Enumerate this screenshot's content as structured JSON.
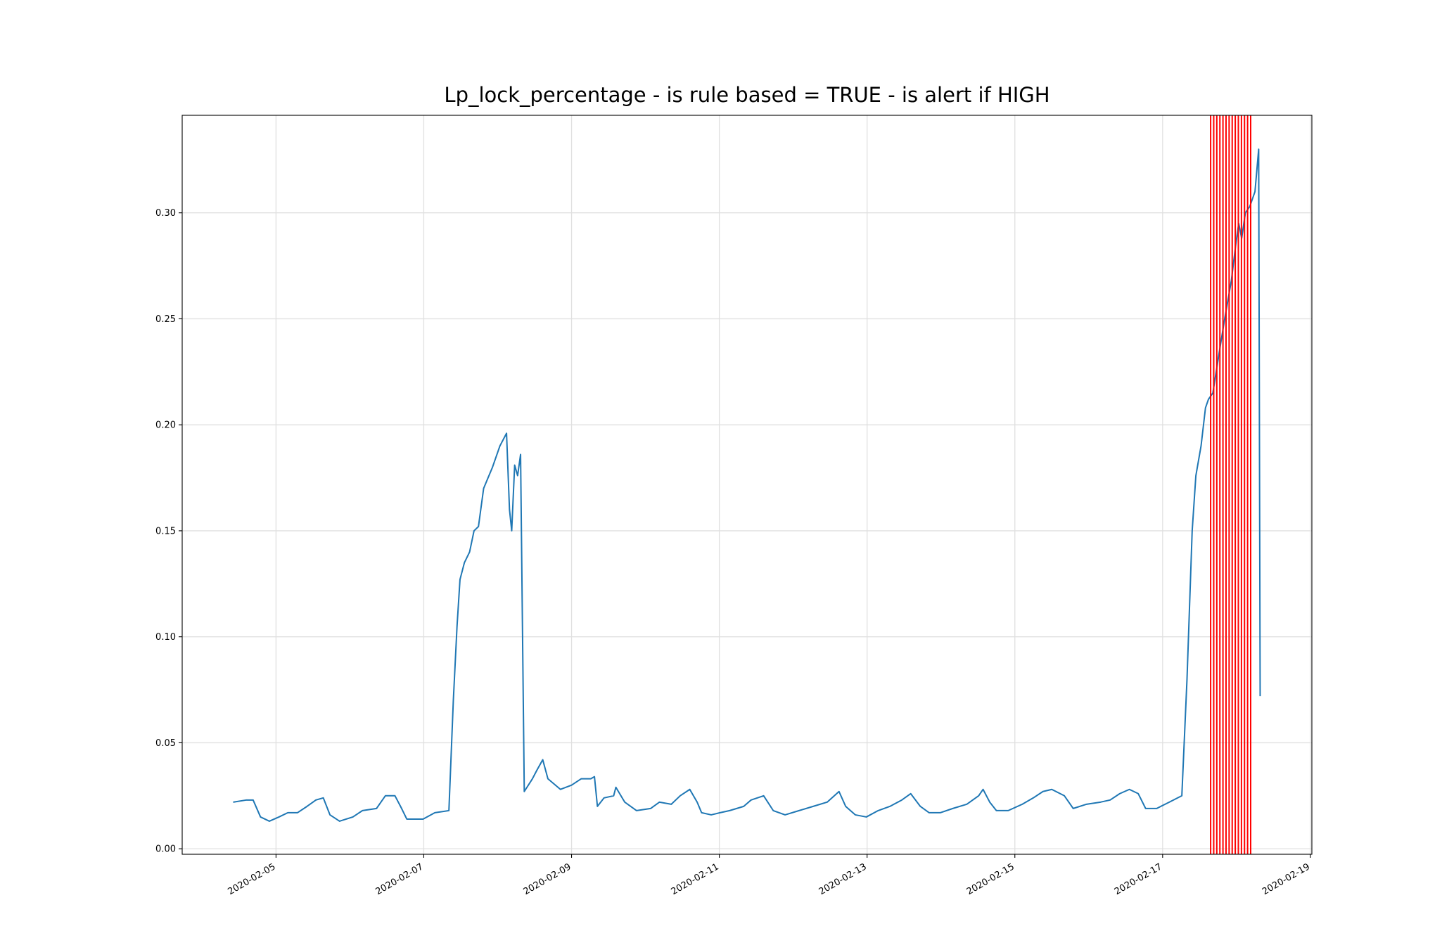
{
  "chart_data": {
    "type": "line",
    "title": "Lp_lock_percentage - is rule based =  TRUE - is alert if  HIGH",
    "color": "#1f77b4",
    "grid": true,
    "xlim": [
      18295.73,
      18311.02
    ],
    "ylim": [
      -0.0026,
      0.346
    ],
    "xticks": [
      {
        "value": 18297,
        "label": "2020-02-05"
      },
      {
        "value": 18299,
        "label": "2020-02-07"
      },
      {
        "value": 18301,
        "label": "2020-02-09"
      },
      {
        "value": 18303,
        "label": "2020-02-11"
      },
      {
        "value": 18305,
        "label": "2020-02-13"
      },
      {
        "value": 18307,
        "label": "2020-02-15"
      },
      {
        "value": 18309,
        "label": "2020-02-17"
      },
      {
        "value": 18311,
        "label": "2020-02-19"
      }
    ],
    "yticks": [
      {
        "value": 0,
        "label": "0.00"
      },
      0.05,
      {
        "value": 0.1,
        "label": "0.10"
      },
      0.15,
      {
        "value": 0.2,
        "label": "0.20"
      },
      0.25,
      {
        "value": 0.3,
        "label": "0.30"
      }
    ],
    "x": [
      18296.42,
      18296.6,
      18296.69,
      18296.79,
      18296.91,
      18297.04,
      18297.16,
      18297.29,
      18297.42,
      18297.54,
      18297.64,
      18297.73,
      18297.86,
      18298.04,
      18298.17,
      18298.36,
      18298.48,
      18298.61,
      18298.7,
      18298.77,
      18298.99,
      18299.15,
      18299.34,
      18299.4,
      18299.45,
      18299.49,
      18299.55,
      18299.62,
      18299.68,
      18299.74,
      18299.81,
      18299.87,
      18299.93,
      18300.03,
      18300.12,
      18300.16,
      18300.19,
      18300.23,
      18300.27,
      18300.31,
      18300.36,
      18300.47,
      18300.53,
      18300.61,
      18300.68,
      18300.85,
      18301.0,
      18301.13,
      18301.26,
      18301.31,
      18301.35,
      18301.44,
      18301.57,
      18301.6,
      18301.72,
      18301.88,
      18302.07,
      18302.19,
      18302.35,
      18302.47,
      18302.6,
      18302.7,
      18302.76,
      18302.89,
      18303.01,
      18303.14,
      18303.33,
      18303.43,
      18303.6,
      18303.73,
      18303.89,
      18304.08,
      18304.27,
      18304.46,
      18304.62,
      18304.71,
      18304.84,
      18304.99,
      18305.15,
      18305.31,
      18305.47,
      18305.59,
      18305.72,
      18305.84,
      18305.99,
      18306.16,
      18306.35,
      18306.51,
      18306.57,
      18306.66,
      18306.75,
      18306.91,
      18307.1,
      18307.25,
      18307.38,
      18307.5,
      18307.67,
      18307.79,
      18307.97,
      18308.16,
      18308.29,
      18308.42,
      18308.55,
      18308.67,
      18308.77,
      18308.92,
      18309.09,
      18309.26,
      18309.33,
      18309.4,
      18309.45,
      18309.52,
      18309.58,
      18309.62,
      18309.68,
      18309.77,
      18309.84,
      18309.93,
      18309.99,
      18310.03,
      18310.07,
      18310.12,
      18310.18,
      18310.25,
      18310.3,
      18310.32
    ],
    "values": [
      0.022,
      0.023,
      0.023,
      0.015,
      0.013,
      0.015,
      0.017,
      0.017,
      0.02,
      0.023,
      0.024,
      0.016,
      0.013,
      0.015,
      0.018,
      0.019,
      0.025,
      0.025,
      0.019,
      0.014,
      0.014,
      0.017,
      0.018,
      0.07,
      0.105,
      0.127,
      0.135,
      0.14,
      0.15,
      0.152,
      0.17,
      0.175,
      0.18,
      0.19,
      0.196,
      0.16,
      0.15,
      0.181,
      0.176,
      0.186,
      0.027,
      0.033,
      0.037,
      0.042,
      0.033,
      0.028,
      0.03,
      0.033,
      0.033,
      0.034,
      0.02,
      0.024,
      0.025,
      0.029,
      0.022,
      0.018,
      0.019,
      0.022,
      0.021,
      0.025,
      0.028,
      0.022,
      0.017,
      0.016,
      0.017,
      0.018,
      0.02,
      0.023,
      0.025,
      0.018,
      0.016,
      0.018,
      0.02,
      0.022,
      0.027,
      0.02,
      0.016,
      0.015,
      0.018,
      0.02,
      0.023,
      0.026,
      0.02,
      0.017,
      0.017,
      0.019,
      0.021,
      0.025,
      0.028,
      0.022,
      0.018,
      0.018,
      0.021,
      0.024,
      0.027,
      0.028,
      0.025,
      0.019,
      0.021,
      0.022,
      0.023,
      0.026,
      0.028,
      0.026,
      0.019,
      0.019,
      0.022,
      0.025,
      0.08,
      0.15,
      0.176,
      0.19,
      0.208,
      0.212,
      0.215,
      0.235,
      0.25,
      0.268,
      0.285,
      0.295,
      0.288,
      0.3,
      0.303,
      0.31,
      0.33,
      0.072
    ],
    "alerts": {
      "color": "#ff0000",
      "x": [
        18309.65,
        18309.6917,
        18309.7333,
        18309.775,
        18309.8167,
        18309.8583,
        18309.9,
        18309.9417,
        18309.9833,
        18310.025,
        18310.0667,
        18310.1083,
        18310.15,
        18310.1917
      ]
    }
  }
}
